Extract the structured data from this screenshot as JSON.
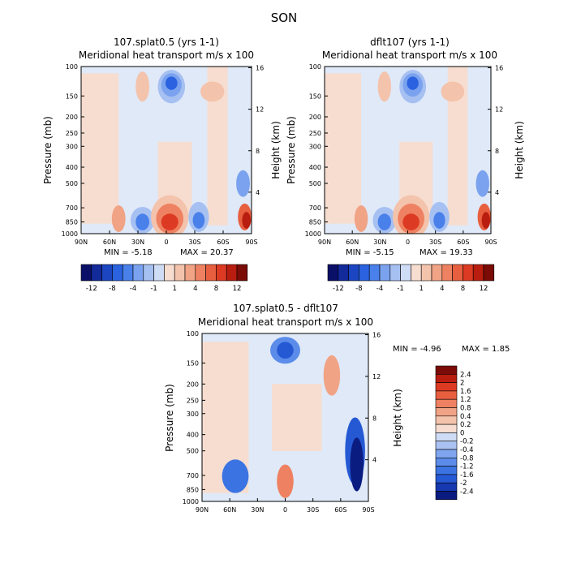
{
  "title": "SON",
  "colors": {
    "bg": "#dfe9f8",
    "neg": [
      "#0a0f68",
      "#122a9a",
      "#1c45c2",
      "#2a62e0",
      "#4a80ea",
      "#7aa2ee",
      "#a6c0f2",
      "#cfdcf6"
    ],
    "pos": [
      "#f6ddd0",
      "#f4c3ac",
      "#f1a385",
      "#ee8161",
      "#e85f3f",
      "#dc3a22",
      "#b81d0f",
      "#7a0b07"
    ],
    "diff_neg": [
      "#cfdcf6",
      "#a9c2f2",
      "#7ea5ee",
      "#5b8ce9",
      "#3b74e2",
      "#2559d4",
      "#1638b0",
      "#0b1c80"
    ],
    "diff_pos": [
      "#f6ddd0",
      "#f4c3ac",
      "#f1a385",
      "#ee8161",
      "#e85f3f",
      "#dc3a22",
      "#b81d0f",
      "#7a0b07"
    ]
  },
  "chart_data": [
    {
      "type": "heatmap",
      "title": "107.splat0.5 (yrs 1-1)",
      "subtitle": "Meridional heat transport m/s x 100",
      "xlabel": "",
      "ylabel": "Pressure (mb)",
      "y2label": "Height (km)",
      "x_ticks": [
        "90N",
        "60N",
        "30N",
        "0",
        "30S",
        "60S",
        "90S"
      ],
      "y_ticks": [
        100,
        150,
        200,
        250,
        300,
        400,
        500,
        700,
        850,
        1000
      ],
      "y2_ticks": [
        16,
        12,
        8,
        4
      ],
      "ylim": [
        1000,
        100
      ],
      "y_scale": "log",
      "min": -5.18,
      "max": 20.37,
      "stats_text": {
        "min": "MIN =   -5.18",
        "max": "MAX =   20.37"
      },
      "colorbar_labels": [
        "-12",
        "-8",
        "-4",
        "-1",
        "1",
        "4",
        "8",
        "12"
      ],
      "colorbar_placement": "bottom"
    },
    {
      "type": "heatmap",
      "title": "dflt107 (yrs 1-1)",
      "subtitle": "Meridional heat transport m/s x 100",
      "xlabel": "",
      "ylabel": "Pressure (mb)",
      "y2label": "Height (km)",
      "x_ticks": [
        "90N",
        "60N",
        "30N",
        "0",
        "30S",
        "60S",
        "90S"
      ],
      "y_ticks": [
        100,
        150,
        200,
        250,
        300,
        400,
        500,
        700,
        850,
        1000
      ],
      "y2_ticks": [
        16,
        12,
        8,
        4
      ],
      "ylim": [
        1000,
        100
      ],
      "y_scale": "log",
      "min": -5.15,
      "max": 19.33,
      "stats_text": {
        "min": "MIN =   -5.15",
        "max": "MAX =   19.33"
      },
      "colorbar_labels": [
        "-12",
        "-8",
        "-4",
        "-1",
        "1",
        "4",
        "8",
        "12"
      ],
      "colorbar_placement": "bottom"
    },
    {
      "type": "heatmap",
      "title": "107.splat0.5 - dflt107",
      "subtitle": "Meridional heat transport m/s x 100",
      "xlabel": "",
      "ylabel": "Pressure (mb)",
      "y2label": "Height (km)",
      "x_ticks": [
        "90N",
        "60N",
        "30N",
        "0",
        "30S",
        "60S",
        "90S"
      ],
      "y_ticks": [
        100,
        150,
        200,
        250,
        300,
        400,
        500,
        700,
        850,
        1000
      ],
      "y2_ticks": [
        16,
        12,
        8,
        4
      ],
      "ylim": [
        1000,
        100
      ],
      "y_scale": "log",
      "min": -4.96,
      "max": 1.85,
      "stats_text": {
        "min": "MIN =   -4.96",
        "max": "MAX =   1.85"
      },
      "colorbar_labels": [
        "2.4",
        "2",
        "1.6",
        "1.2",
        "0.8",
        "0.4",
        "0.2",
        "0",
        "-0.2",
        "-0.4",
        "-0.8",
        "-1.2",
        "-1.6",
        "-2",
        "-2.4"
      ],
      "colorbar_placement": "right"
    }
  ]
}
